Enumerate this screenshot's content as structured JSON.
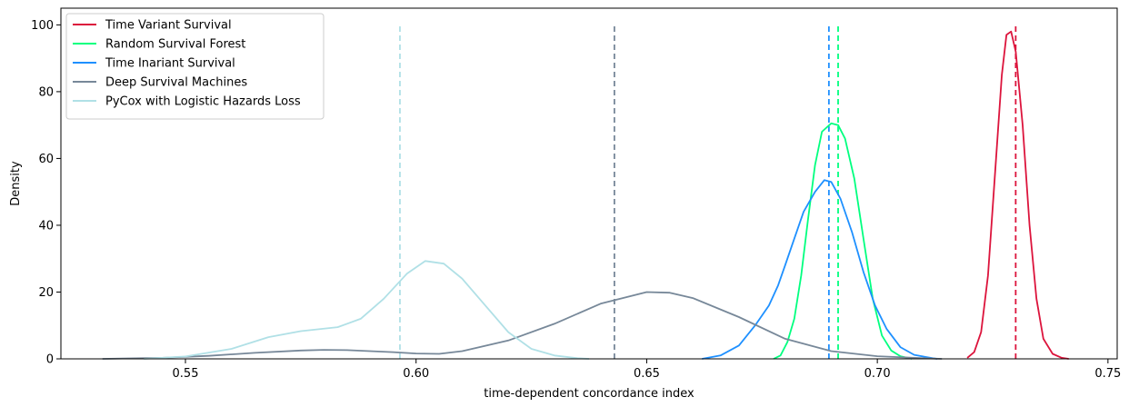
{
  "chart_data": {
    "type": "line",
    "title": "",
    "xlabel": "time-dependent concordance index",
    "ylabel": "Density",
    "xlim": [
      0.523,
      0.752
    ],
    "ylim": [
      0,
      105
    ],
    "xticks": [
      "0.55",
      "0.60",
      "0.65",
      "0.70",
      "0.75"
    ],
    "yticks": [
      "0",
      "20",
      "40",
      "60",
      "80",
      "100"
    ],
    "grid": false,
    "legend_position": "top-left",
    "series": [
      {
        "name": "Time Variant Survival",
        "color": "#dc143c",
        "mean_line": 0.73,
        "points": [
          [
            0.7195,
            0.3
          ],
          [
            0.721,
            2
          ],
          [
            0.7225,
            8
          ],
          [
            0.724,
            25
          ],
          [
            0.7255,
            55
          ],
          [
            0.727,
            85
          ],
          [
            0.728,
            97
          ],
          [
            0.729,
            98
          ],
          [
            0.73,
            92
          ],
          [
            0.7315,
            70
          ],
          [
            0.733,
            40
          ],
          [
            0.7345,
            18
          ],
          [
            0.736,
            6
          ],
          [
            0.738,
            1.5
          ],
          [
            0.74,
            0.3
          ],
          [
            0.7415,
            0
          ]
        ]
      },
      {
        "name": "Random Survival Forest",
        "color": "#00ff7f",
        "mean_line": 0.6915,
        "points": [
          [
            0.6775,
            0
          ],
          [
            0.679,
            1
          ],
          [
            0.6805,
            5
          ],
          [
            0.682,
            12
          ],
          [
            0.6835,
            25
          ],
          [
            0.685,
            42
          ],
          [
            0.6865,
            58
          ],
          [
            0.688,
            68
          ],
          [
            0.69,
            70.5
          ],
          [
            0.6915,
            70
          ],
          [
            0.693,
            66
          ],
          [
            0.695,
            54
          ],
          [
            0.697,
            36
          ],
          [
            0.699,
            18
          ],
          [
            0.701,
            7
          ],
          [
            0.703,
            2.5
          ],
          [
            0.705,
            0.8
          ],
          [
            0.7075,
            0
          ]
        ]
      },
      {
        "name": "Time Inariant Survival",
        "color": "#1e90ff",
        "mean_line": 0.6895,
        "points": [
          [
            0.662,
            0
          ],
          [
            0.666,
            1
          ],
          [
            0.67,
            4
          ],
          [
            0.6735,
            10
          ],
          [
            0.6765,
            16
          ],
          [
            0.6785,
            22
          ],
          [
            0.68,
            28
          ],
          [
            0.682,
            36
          ],
          [
            0.684,
            44
          ],
          [
            0.6865,
            50
          ],
          [
            0.6885,
            53.5
          ],
          [
            0.69,
            53
          ],
          [
            0.692,
            48
          ],
          [
            0.6945,
            38
          ],
          [
            0.697,
            26
          ],
          [
            0.6995,
            16
          ],
          [
            0.702,
            9
          ],
          [
            0.705,
            3.5
          ],
          [
            0.708,
            1.2
          ],
          [
            0.712,
            0.2
          ],
          [
            0.713,
            0
          ]
        ]
      },
      {
        "name": "Deep Survival Machines",
        "color": "#778899",
        "mean_line": 0.643,
        "points": [
          [
            0.532,
            0
          ],
          [
            0.545,
            0.3
          ],
          [
            0.555,
            0.9
          ],
          [
            0.565,
            1.8
          ],
          [
            0.575,
            2.5
          ],
          [
            0.58,
            2.7
          ],
          [
            0.585,
            2.6
          ],
          [
            0.595,
            2.0
          ],
          [
            0.6,
            1.6
          ],
          [
            0.605,
            1.5
          ],
          [
            0.61,
            2.3
          ],
          [
            0.62,
            5.5
          ],
          [
            0.63,
            10.5
          ],
          [
            0.64,
            16.5
          ],
          [
            0.65,
            20.0
          ],
          [
            0.655,
            19.8
          ],
          [
            0.66,
            18.2
          ],
          [
            0.67,
            12.5
          ],
          [
            0.68,
            6.0
          ],
          [
            0.69,
            2.3
          ],
          [
            0.7,
            0.8
          ],
          [
            0.71,
            0.2
          ],
          [
            0.714,
            0
          ]
        ]
      },
      {
        "name": "PyCox with Logistic Hazards Loss",
        "color": "#b0e0e6",
        "mean_line": 0.5965,
        "points": [
          [
            0.541,
            0
          ],
          [
            0.55,
            0.7
          ],
          [
            0.56,
            3
          ],
          [
            0.568,
            6.5
          ],
          [
            0.575,
            8.3
          ],
          [
            0.583,
            9.5
          ],
          [
            0.588,
            12
          ],
          [
            0.593,
            18
          ],
          [
            0.598,
            25.5
          ],
          [
            0.602,
            29.3
          ],
          [
            0.606,
            28.5
          ],
          [
            0.61,
            24
          ],
          [
            0.615,
            16
          ],
          [
            0.62,
            8
          ],
          [
            0.625,
            3
          ],
          [
            0.63,
            1
          ],
          [
            0.635,
            0.2
          ],
          [
            0.6375,
            0
          ]
        ]
      }
    ]
  }
}
